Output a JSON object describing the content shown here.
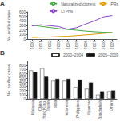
{
  "chart_data": [
    {
      "type": "line",
      "title": "A",
      "x": [
        2000,
        2001,
        2002,
        2003,
        2004,
        2005,
        2006,
        2007,
        2008,
        2009
      ],
      "xlim": [
        1999.5,
        2009.5
      ],
      "xticks": [
        2000,
        2001,
        2002,
        2003,
        2004,
        2005,
        2006,
        2007,
        2008,
        2009
      ],
      "ylabel": "No. notified cases",
      "ylim": [
        0,
        600
      ],
      "yticks": [
        0,
        100,
        200,
        300,
        400,
        500,
        600
      ],
      "series": [
        {
          "name": "Naturalized citizens",
          "color": "#44aa44",
          "values": [
            310,
            280,
            255,
            230,
            210,
            195,
            175,
            160,
            150,
            145
          ]
        },
        {
          "name": "PRs",
          "color": "#dd9900",
          "values": [
            35,
            40,
            45,
            55,
            60,
            75,
            90,
            105,
            125,
            140
          ]
        },
        {
          "name": "LTPHs",
          "color": "#8844cc",
          "values": [
            290,
            315,
            295,
            275,
            215,
            250,
            330,
            400,
            490,
            520
          ]
        }
      ],
      "legend": "upper right",
      "grid": false
    },
    {
      "type": "bar",
      "title": "B",
      "categories": [
        "Malaysia",
        "China,\nHong Kong,\nTaiwan",
        "India",
        "Indonesia",
        "Philippines",
        "Myanmar",
        "Bangladesh",
        "Others"
      ],
      "ylabel": "No. notified cases",
      "ylim": [
        0,
        900
      ],
      "yticks": [
        0,
        100,
        200,
        300,
        400,
        500,
        600,
        700,
        800
      ],
      "series": [
        {
          "name": "2000–2004",
          "color": "#ffffff",
          "values": [
            680,
            730,
            430,
            430,
            280,
            240,
            100,
            180
          ]
        },
        {
          "name": "2005–2009",
          "color": "#111111",
          "values": [
            640,
            530,
            480,
            480,
            460,
            390,
            180,
            200
          ]
        }
      ],
      "legend": "upper right",
      "grid": false
    }
  ]
}
